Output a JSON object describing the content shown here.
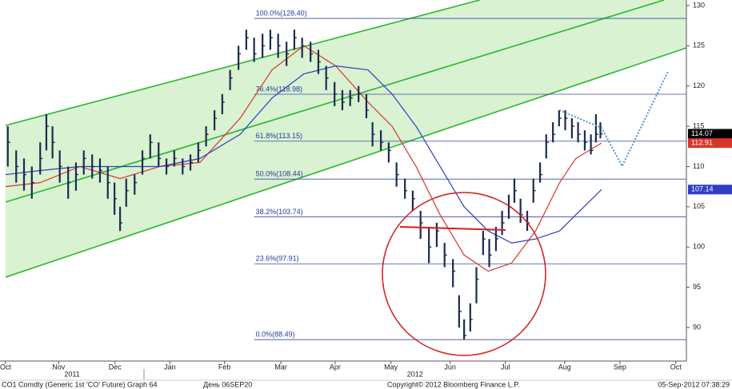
{
  "chart_data": {
    "type": "ohlc",
    "x": [
      0.04,
      0.19,
      0.33,
      0.47,
      0.62,
      0.73,
      0.84,
      0.97,
      1.12,
      1.26,
      1.4,
      1.55,
      1.69,
      1.83,
      1.95,
      2.05,
      2.16,
      2.31,
      2.45,
      2.59,
      2.74,
      2.88,
      3.02,
      3.17,
      3.31,
      3.45,
      3.59,
      3.74,
      3.88,
      4.02,
      4.17,
      4.31,
      4.45,
      4.6,
      4.74,
      4.88,
      5.03,
      5.17,
      5.31,
      5.46,
      5.6,
      5.74,
      5.89,
      6.03,
      6.17,
      6.32,
      6.46,
      6.57,
      6.72,
      6.86,
      7.0,
      7.15,
      7.29,
      7.43,
      7.58,
      7.72,
      7.86,
      8.01,
      8.12,
      8.21,
      8.32,
      8.43,
      8.55,
      8.66,
      8.78,
      8.89,
      9.01,
      9.11,
      9.22,
      9.34,
      9.45,
      9.57,
      9.68,
      9.8,
      9.91,
      10.02,
      10.14,
      10.25,
      10.37,
      10.48,
      10.57,
      10.65
    ],
    "close": [
      113,
      110,
      109,
      108,
      111,
      115,
      113,
      110,
      108,
      109,
      111,
      110,
      109.5,
      108,
      106,
      103,
      107,
      108,
      111,
      113,
      111,
      110,
      111,
      110,
      110.5,
      112,
      114,
      116,
      118,
      121,
      124,
      126,
      124,
      125,
      126,
      125,
      124,
      126,
      125,
      124,
      123,
      121,
      119,
      118,
      118.5,
      119,
      117,
      114,
      113,
      112,
      109,
      107,
      106,
      103,
      100,
      102,
      99,
      97,
      92,
      89,
      91,
      96,
      101,
      99,
      101,
      103,
      105,
      107,
      104,
      103,
      107,
      109,
      113,
      114,
      116,
      116,
      115,
      114,
      113,
      112,
      114,
      114.07
    ],
    "high": [
      115,
      112,
      111,
      110,
      113,
      116.5,
      115,
      112,
      110,
      110.5,
      112,
      111.5,
      111,
      110,
      108,
      105,
      108.5,
      109,
      112,
      114,
      113,
      111,
      112,
      111,
      111.5,
      113,
      115,
      117,
      119,
      122,
      125,
      127,
      126,
      126.5,
      127,
      126.5,
      125.5,
      127,
      126,
      125.5,
      124.5,
      122.5,
      120.5,
      119.5,
      119.5,
      120,
      119,
      115.5,
      114.5,
      113,
      110.5,
      108.5,
      107,
      104.5,
      102.5,
      103,
      100.5,
      98.5,
      94,
      91,
      93,
      97.5,
      102,
      101,
      102.5,
      104.5,
      106.5,
      108.5,
      106,
      104.5,
      108.5,
      110.5,
      114,
      115.5,
      117,
      117,
      116,
      115.5,
      114.5,
      114,
      116.5,
      115.5
    ],
    "low": [
      110,
      108,
      107,
      106,
      109,
      112,
      111,
      108,
      106,
      107,
      109,
      108.5,
      108,
      106,
      104,
      102,
      105,
      106.5,
      109,
      111,
      110,
      109,
      110,
      109,
      109.5,
      110.5,
      112.5,
      114.5,
      116.5,
      119.5,
      122,
      124.5,
      123,
      123.5,
      124.5,
      123.5,
      122.5,
      124.5,
      123.5,
      123,
      121.5,
      119.5,
      117.5,
      117,
      117.5,
      118,
      116,
      112.5,
      112,
      110.5,
      107.5,
      106,
      104.5,
      101,
      98,
      100,
      97.5,
      95,
      90,
      88.5,
      89.5,
      93,
      99,
      97.5,
      99.5,
      101.5,
      103.5,
      105.5,
      103,
      102,
      105.5,
      108,
      111,
      113,
      115,
      114.5,
      113.5,
      113,
      112,
      111.5,
      113,
      113.5
    ],
    "color": "#1c2b4f",
    "tag_color": "#000000",
    "overlays": [
      {
        "color": "#d9362b",
        "x": [
          0,
          0.62,
          1.33,
          2.05,
          2.76,
          3.48,
          4.2,
          4.77,
          5.34,
          5.91,
          6.49,
          6.92,
          7.35,
          7.78,
          8.21,
          8.64,
          9.06,
          9.49,
          9.92,
          10.21,
          10.67
        ],
        "values": [
          107.5,
          108,
          110,
          108.5,
          110,
          110.5,
          116,
          122,
          125,
          122.5,
          118,
          115,
          110,
          104,
          99,
          97,
          98,
          102,
          108,
          111,
          112.91
        ]
      },
      {
        "color": "#2f3fc4",
        "x": [
          0,
          0.62,
          1.33,
          2.05,
          2.76,
          3.48,
          4.2,
          4.77,
          5.34,
          5.91,
          6.49,
          6.92,
          7.35,
          7.78,
          8.21,
          8.64,
          9.06,
          9.49,
          9.92,
          10.21,
          10.67
        ],
        "values": [
          109,
          109.5,
          110,
          110,
          110,
          111,
          114,
          118.5,
          121.5,
          122.5,
          122,
          119,
          115,
          110,
          105,
          102,
          100.5,
          101,
          102,
          104,
          107.14
        ]
      }
    ],
    "channel_lines": [
      {
        "x": [
          0,
          8.49
        ],
        "values": [
          115.11,
          130.69
        ]
      },
      {
        "x": [
          0,
          11.79
        ],
        "values": [
          105.58,
          130.69
        ]
      },
      {
        "x": [
          0,
          12.19
        ],
        "values": [
          96.25,
          124.74
        ]
      }
    ],
    "channel_color": "#2bb52b",
    "channel_fill": "#d8f2d2",
    "levels": [
      {
        "value": 128.4,
        "label": "100.0%(128.40)"
      },
      {
        "value": 118.98,
        "label": "76.4%(118.98)"
      },
      {
        "value": 113.15,
        "label": "61.8%(113.15)"
      },
      {
        "value": 108.44,
        "label": "50.0%(108.44)"
      },
      {
        "value": 103.74,
        "label": "38.2%(103.74)"
      },
      {
        "value": 97.91,
        "label": "23.6%(97.91)"
      },
      {
        "value": 88.49,
        "label": "0.0%(88.49)"
      }
    ],
    "levels_start": 4.45,
    "levels_color": "#3a4aa8",
    "projection": {
      "x": [
        9.92,
        10.67,
        11.04,
        11.86
      ],
      "values": [
        117,
        114.8,
        110.05,
        121.8
      ],
      "color": "#5a8fd0"
    },
    "xlim": [
      -0.1,
      12.19
    ],
    "xticks": [
      {
        "value": 0,
        "label": "Oct"
      },
      {
        "value": 0.95,
        "label": "Nov"
      },
      {
        "value": 1.96,
        "label": "Dec"
      },
      {
        "value": 2.94,
        "label": "Jan"
      },
      {
        "value": 3.92,
        "label": "Feb"
      },
      {
        "value": 4.93,
        "label": "Mar"
      },
      {
        "value": 5.9,
        "label": "Apr"
      },
      {
        "value": 6.9,
        "label": "May"
      },
      {
        "value": 7.96,
        "label": "Jun"
      },
      {
        "value": 8.95,
        "label": "Jul"
      },
      {
        "value": 10.01,
        "label": "Aug"
      },
      {
        "value": 11.0,
        "label": "Sep"
      },
      {
        "value": 12.0,
        "label": "Oct"
      }
    ],
    "year_labels": [
      {
        "value": 1.19,
        "label": "2011"
      },
      {
        "value": 7.33,
        "label": "2012"
      }
    ],
    "ylim": [
      85.83,
      130.69
    ],
    "yticks": [
      90,
      95,
      100,
      105,
      110,
      115,
      120,
      125,
      130
    ],
    "footer": [
      "CO1 Comdty (Generic 1st 'CO' Future) Graph 64",
      "День 06SEP20",
      "Copyright© 2012 Bloomberg Finance L.P.",
      "05-Sep-2012 07:38:29"
    ]
  }
}
